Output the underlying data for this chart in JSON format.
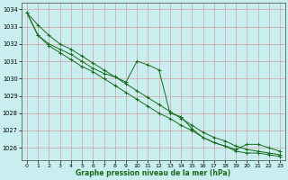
{
  "title": "Graphe pression niveau de la mer (hPa)",
  "background_color": "#c8eef0",
  "grid_color_major": "#aaaaaa",
  "grid_color_minor": "#cccccc",
  "line_color": "#1a6b1a",
  "xlim": [
    -0.5,
    23.5
  ],
  "ylim": [
    1025.3,
    1034.4
  ],
  "yticks": [
    1026,
    1027,
    1028,
    1029,
    1030,
    1031,
    1032,
    1033,
    1034
  ],
  "xticks": [
    0,
    1,
    2,
    3,
    4,
    5,
    6,
    7,
    8,
    9,
    10,
    11,
    12,
    13,
    14,
    15,
    16,
    17,
    18,
    19,
    20,
    21,
    22,
    23
  ],
  "series": [
    [
      1033.8,
      1033.1,
      1032.5,
      1032.0,
      1031.7,
      1031.3,
      1030.9,
      1030.5,
      1030.1,
      1029.7,
      1029.3,
      1028.9,
      1028.5,
      1028.1,
      1027.7,
      1027.3,
      1026.9,
      1026.6,
      1026.4,
      1026.1,
      1025.9,
      1025.8,
      1025.7,
      1025.6
    ],
    [
      1033.8,
      1032.5,
      1032.0,
      1031.7,
      1031.4,
      1031.0,
      1030.6,
      1030.3,
      1030.1,
      1029.8,
      1031.0,
      1030.8,
      1030.5,
      1028.0,
      1027.8,
      1027.1,
      1026.6,
      1026.3,
      1026.1,
      1025.9,
      1026.2,
      1026.2,
      1026.0,
      1025.8
    ],
    [
      1033.8,
      1032.5,
      1031.9,
      1031.5,
      1031.1,
      1030.7,
      1030.4,
      1030.0,
      1029.6,
      1029.2,
      1028.8,
      1028.4,
      1028.0,
      1027.7,
      1027.3,
      1027.0,
      1026.6,
      1026.3,
      1026.1,
      1025.8,
      1025.7,
      1025.7,
      1025.6,
      1025.5
    ]
  ]
}
